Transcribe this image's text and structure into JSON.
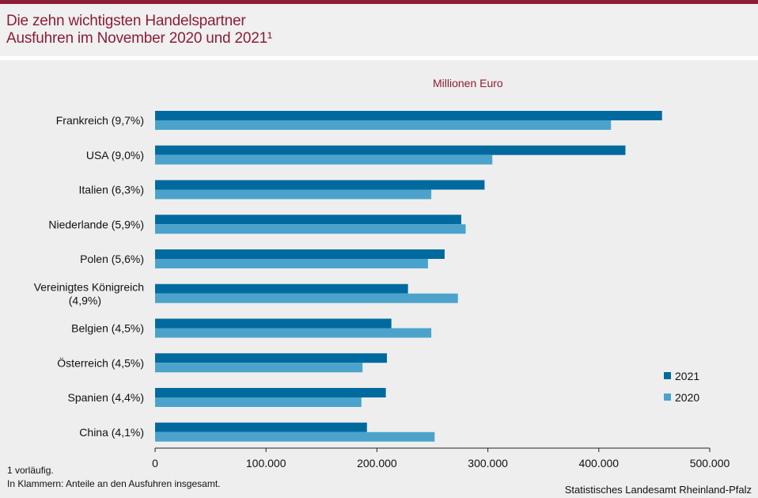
{
  "header": {
    "title_line1": "Die zehn wichtigsten Handelspartner",
    "title_line2": "Ausfuhren im November 2020 und 2021¹"
  },
  "colors": {
    "accent": "#8c1d36",
    "series_2021": "#006a9e",
    "series_2020": "#4ba3cb"
  },
  "chart_data": {
    "type": "bar",
    "orientation": "horizontal",
    "unit_label": "Millionen Euro",
    "categories": [
      [
        "Frankreich (9,7%)"
      ],
      [
        "USA (9,0%)"
      ],
      [
        "Italien (6,3%)"
      ],
      [
        "Niederlande (5,9%)"
      ],
      [
        "Polen (5,6%)"
      ],
      [
        "Vereinigtes Königreich",
        "(4,9%)"
      ],
      [
        "Belgien (4,5%)"
      ],
      [
        "Österreich (4,5%)"
      ],
      [
        "Spanien (4,4%)"
      ],
      [
        "China (4,1%)"
      ]
    ],
    "series": [
      {
        "name": "2021",
        "color": "#006a9e",
        "values": [
          457000,
          424000,
          297000,
          276000,
          261000,
          228000,
          213000,
          209000,
          208000,
          191000
        ]
      },
      {
        "name": "2020",
        "color": "#4ba3cb",
        "values": [
          411000,
          304000,
          249000,
          280000,
          246000,
          273000,
          249000,
          187000,
          186000,
          252000
        ]
      }
    ],
    "xlim": [
      0,
      500000
    ],
    "xticks": [
      0,
      100000,
      200000,
      300000,
      400000,
      500000
    ],
    "xtick_labels": [
      "0",
      "100.000",
      "200.000",
      "300.000",
      "400.000",
      "500.000"
    ],
    "legend_position": "right"
  },
  "footnotes": {
    "line1": "1 vorläufig.",
    "line2": "In Klammern: Anteile an den Ausfuhren insgesamt."
  },
  "source": "Statistisches Landesamt Rheinland-Pfalz"
}
